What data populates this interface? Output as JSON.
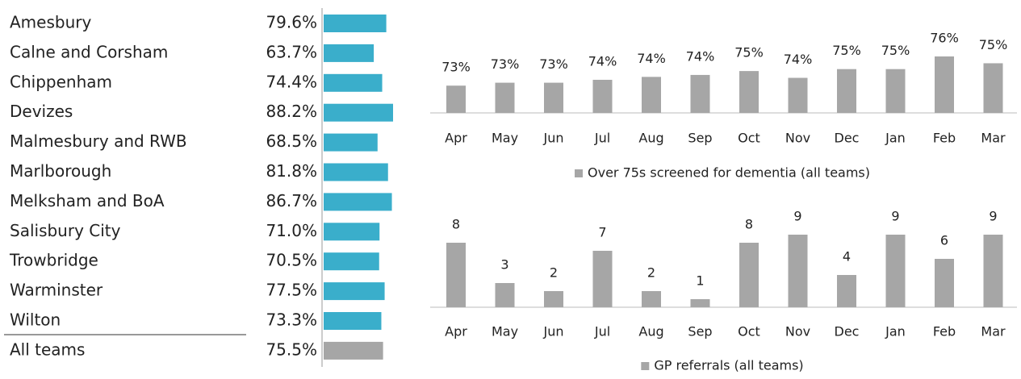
{
  "chart_data": [
    {
      "type": "hbar",
      "categories": [
        "Amesbury",
        "Calne and Corsham",
        "Chippenham",
        "Devizes",
        "Malmesbury and RWB",
        "Marlborough",
        "Melksham and BoA",
        "Salisbury City",
        "Trowbridge",
        "Warminster",
        "Wilton",
        "All teams"
      ],
      "values": [
        79.6,
        63.7,
        74.4,
        88.2,
        68.5,
        81.8,
        86.7,
        71.0,
        70.5,
        77.5,
        73.3,
        75.5
      ],
      "value_labels": [
        "79.6%",
        "63.7%",
        "74.4%",
        "88.2%",
        "68.5%",
        "81.8%",
        "86.7%",
        "71.0%",
        "70.5%",
        "77.5%",
        "73.3%",
        "75.5%"
      ],
      "colors": [
        "#3aaecb",
        "#3aaecb",
        "#3aaecb",
        "#3aaecb",
        "#3aaecb",
        "#3aaecb",
        "#3aaecb",
        "#3aaecb",
        "#3aaecb",
        "#3aaecb",
        "#3aaecb",
        "#a6a6a6"
      ],
      "xlim": [
        0,
        100
      ]
    },
    {
      "type": "bar",
      "categories": [
        "Apr",
        "May",
        "Jun",
        "Jul",
        "Aug",
        "Sep",
        "Oct",
        "Nov",
        "Dec",
        "Jan",
        "Feb",
        "Mar"
      ],
      "series": [
        {
          "name": "Over 75s screened for dementia (all teams)",
          "color": "#a6a6a6",
          "values": [
            73.0,
            73.3,
            73.3,
            73.6,
            73.9,
            74.1,
            74.5,
            73.8,
            74.7,
            74.7,
            76.0,
            75.3
          ],
          "value_labels": [
            "73%",
            "73%",
            "73%",
            "74%",
            "74%",
            "74%",
            "75%",
            "74%",
            "75%",
            "75%",
            "76%",
            "75%"
          ]
        }
      ],
      "ylim": [
        70.2,
        76.0
      ]
    },
    {
      "type": "bar",
      "categories": [
        "Apr",
        "May",
        "Jun",
        "Jul",
        "Aug",
        "Sep",
        "Oct",
        "Nov",
        "Dec",
        "Jan",
        "Feb",
        "Mar"
      ],
      "series": [
        {
          "name": "GP referrals (all teams)",
          "color": "#a6a6a6",
          "values": [
            8,
            3,
            2,
            7,
            2,
            1,
            8,
            9,
            4,
            9,
            6,
            9
          ]
        }
      ],
      "ylim": [
        0,
        9
      ]
    }
  ]
}
